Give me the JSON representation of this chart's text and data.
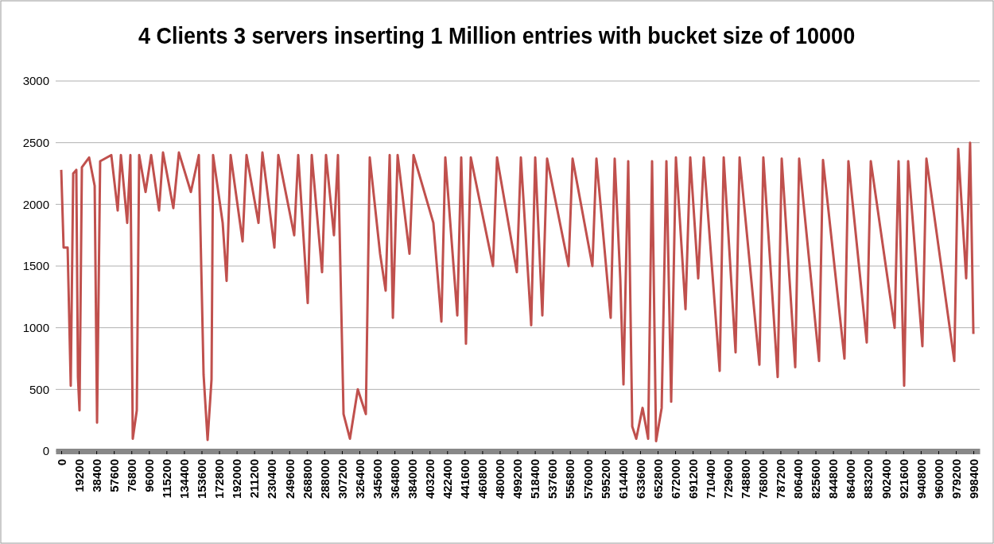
{
  "chart_data": {
    "type": "line",
    "title": "4 Clients 3 servers inserting 1 Million entries with bucket size of 10000",
    "x": [
      0,
      2600,
      7000,
      10400,
      13100,
      16500,
      18300,
      20000,
      22600,
      30500,
      36600,
      39200,
      42600,
      54800,
      61800,
      65300,
      72200,
      75700,
      78300,
      82700,
      85300,
      92300,
      98400,
      107100,
      111400,
      122700,
      128800,
      141900,
      150600,
      155800,
      160200,
      164500,
      166200,
      176700,
      181000,
      185400,
      198500,
      202800,
      215900,
      220200,
      233300,
      237600,
      255000,
      259400,
      269800,
      274200,
      285500,
      289800,
      298500,
      302900,
      309000,
      316000,
      324600,
      333400,
      337700,
      349000,
      355100,
      359500,
      363000,
      368200,
      381200,
      385600,
      407300,
      416100,
      420400,
      433500,
      437800,
      443000,
      448300,
      472600,
      477000,
      498700,
      503100,
      514400,
      518800,
      526600,
      531800,
      555300,
      559700,
      581400,
      585800,
      601400,
      605800,
      611900,
      615400,
      620600,
      625000,
      629400,
      636300,
      642400,
      646700,
      651100,
      657200,
      662400,
      667600,
      672800,
      683300,
      688500,
      697200,
      703300,
      720700,
      725100,
      738100,
      742500,
      764200,
      768500,
      784200,
      788600,
      803400,
      807700,
      829500,
      833800,
      857300,
      861600,
      881700,
      886100,
      912200,
      916500,
      922600,
      927000,
      942600,
      947000,
      977500,
      981800,
      990500,
      994800,
      998400
    ],
    "series": [
      {
        "color": "#c0504d",
        "values": [
          2280,
          1650,
          1650,
          530,
          2250,
          2280,
          600,
          330,
          2300,
          2380,
          2150,
          230,
          2350,
          2400,
          1950,
          2400,
          1850,
          2400,
          100,
          330,
          2400,
          2100,
          2400,
          1950,
          2420,
          1970,
          2420,
          2100,
          2400,
          620,
          90,
          580,
          2400,
          1850,
          1380,
          2400,
          1700,
          2400,
          1850,
          2420,
          1650,
          2400,
          1750,
          2400,
          1200,
          2400,
          1450,
          2400,
          1750,
          2400,
          300,
          100,
          500,
          300,
          2380,
          1600,
          1300,
          2400,
          1080,
          2400,
          1600,
          2400,
          1850,
          1050,
          2380,
          1100,
          2380,
          870,
          2380,
          1500,
          2380,
          1450,
          2380,
          1020,
          2380,
          1100,
          2370,
          1500,
          2370,
          1500,
          2370,
          1080,
          2370,
          1400,
          540,
          2350,
          200,
          100,
          350,
          100,
          2350,
          80,
          350,
          2350,
          400,
          2380,
          1150,
          2380,
          1400,
          2380,
          650,
          2380,
          800,
          2380,
          700,
          2380,
          600,
          2370,
          680,
          2370,
          730,
          2360,
          750,
          2350,
          880,
          2350,
          1000,
          2350,
          530,
          2350,
          850,
          2370,
          730,
          2450,
          1400,
          2500,
          950
        ]
      }
    ],
    "xlim": [
      -6100,
      1005300
    ],
    "xticks": [
      0,
      19200,
      38400,
      57600,
      76800,
      96000,
      115200,
      134400,
      153600,
      172800,
      192000,
      211200,
      230400,
      249600,
      268800,
      288000,
      307200,
      326400,
      345600,
      364800,
      384000,
      403200,
      422400,
      441600,
      460800,
      480000,
      499200,
      518400,
      537600,
      556800,
      576000,
      595200,
      614400,
      633600,
      652800,
      672000,
      691200,
      710400,
      729600,
      748800,
      768000,
      787200,
      806400,
      825600,
      844800,
      864000,
      883200,
      902400,
      921600,
      940800,
      960000,
      979200,
      998400
    ],
    "ylim": [
      0,
      3000
    ],
    "yticks": [
      0,
      500,
      1000,
      1500,
      2000,
      2500,
      3000
    ],
    "grid": "y",
    "marker": "none",
    "line_style": "solid"
  }
}
